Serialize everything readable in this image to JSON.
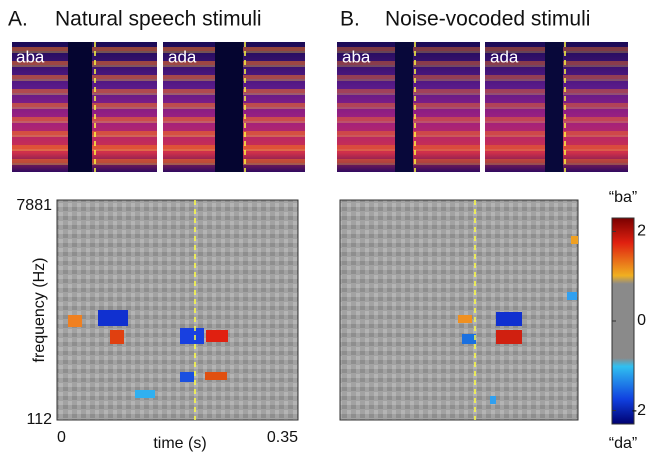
{
  "panels": [
    {
      "label": "A.",
      "title": "Natural speech stimuli",
      "spectrograms": [
        "aba",
        "ada"
      ]
    },
    {
      "label": "B.",
      "title": "Noise-vocoded stimuli",
      "spectrograms": [
        "aba",
        "ada"
      ]
    }
  ],
  "chart_data": {
    "type": "heatmap",
    "ylabel": "frequency (Hz)",
    "xlabel": "time (s)",
    "xlim": [
      0,
      0.35
    ],
    "xticks": [
      0,
      0.35
    ],
    "ylim": [
      112,
      7881
    ],
    "yticks": [
      112,
      7881
    ],
    "yscale": "log",
    "colorbar": {
      "top_label": "“ba”",
      "bottom_label": "“da”",
      "lim": [
        -2.3,
        2.3
      ],
      "ticks": [
        2,
        0,
        -2
      ]
    }
  }
}
